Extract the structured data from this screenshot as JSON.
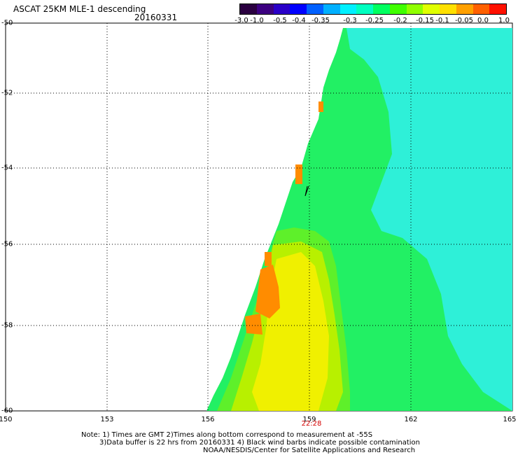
{
  "header": {
    "title": "ASCAT 25KM MLE-1 descending",
    "date": "20160331"
  },
  "colorbar": {
    "colors": [
      "#2a0040",
      "#3c0080",
      "#2a00c8",
      "#0000ff",
      "#0060ff",
      "#00b0ff",
      "#00f0ff",
      "#00ffc0",
      "#00ff60",
      "#40ff00",
      "#90ff00",
      "#e0ff00",
      "#ffe000",
      "#ffa000",
      "#ff6000",
      "#ff1000"
    ],
    "labels": [
      "-3.0",
      "-1.0",
      "-0.5",
      "-0.4",
      "-0.35",
      "-0.3",
      "-0.25",
      "-0.2",
      "-0.15",
      "-0.1",
      "-0.05",
      "0.0",
      "1.0"
    ]
  },
  "map": {
    "lat_labels": [
      "-50",
      "-52",
      "-54",
      "-56",
      "-58",
      "-60"
    ],
    "lon_labels": [
      "150",
      "153",
      "156",
      "159",
      "162",
      "165"
    ],
    "time_label": "22:28",
    "fill_colors": {
      "cyan": "#2ef0d8",
      "green": "#22f064",
      "lightgreen": "#5ef02a",
      "yellowgreen": "#b8f000",
      "yellow": "#f0f000",
      "orange": "#ff8c00"
    }
  },
  "notes": {
    "line1": "Note: 1) Times are GMT 2)Times along bottom correspond to measurement at -55S",
    "line2": "3)Data buffer is 22 hrs from 20160331 4) Black wind barbs indicate possible contamination",
    "line3": "NOAA/NESDIS/Center for Satellite Applications and Research"
  }
}
